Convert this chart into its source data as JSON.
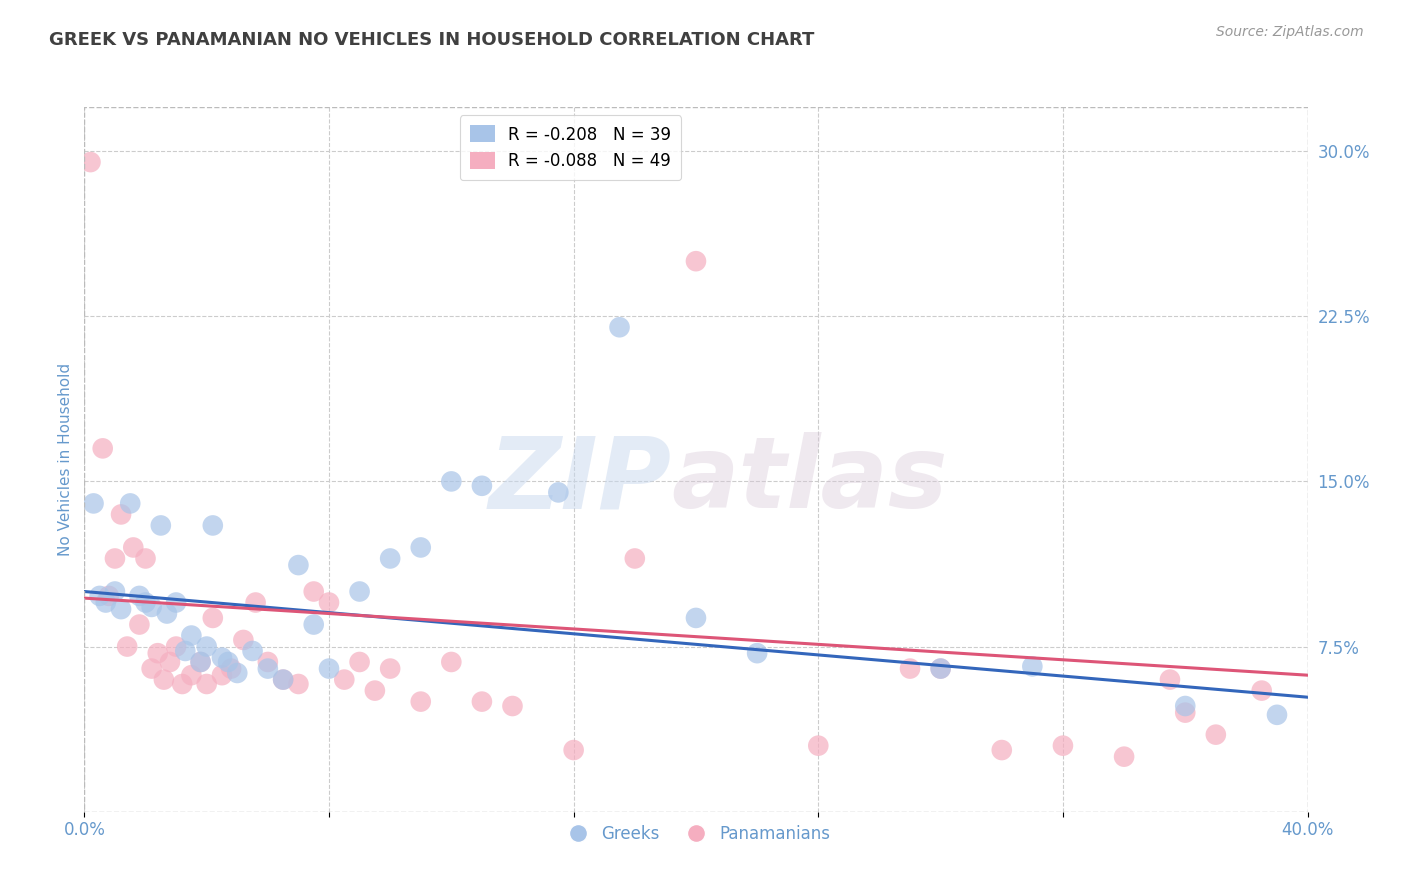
{
  "title": "GREEK VS PANAMANIAN NO VEHICLES IN HOUSEHOLD CORRELATION CHART",
  "source": "Source: ZipAtlas.com",
  "ylabel": "No Vehicles in Household",
  "xlim": [
    0.0,
    0.4
  ],
  "ylim": [
    0.0,
    0.32
  ],
  "xtick_positions": [
    0.0,
    0.08,
    0.16,
    0.24,
    0.32,
    0.4
  ],
  "xticklabels": [
    "0.0%",
    "",
    "",
    "",
    "",
    "40.0%"
  ],
  "ytick_right_labels": [
    "30.0%",
    "22.5%",
    "15.0%",
    "7.5%"
  ],
  "ytick_right_values": [
    0.3,
    0.225,
    0.15,
    0.075
  ],
  "legend_blue_r": "R = -0.208",
  "legend_blue_n": "N = 39",
  "legend_pink_r": "R = -0.088",
  "legend_pink_n": "N = 49",
  "blue_color": "#a8c4e8",
  "pink_color": "#f5aec0",
  "blue_line_color": "#3366bb",
  "pink_line_color": "#dd5577",
  "watermark_zip": "ZIP",
  "watermark_atlas": "atlas",
  "background_color": "#ffffff",
  "grid_color": "#cccccc",
  "title_color": "#404040",
  "source_color": "#999999",
  "axis_label_color": "#6699cc",
  "greek_scatter_x": [
    0.003,
    0.005,
    0.007,
    0.01,
    0.012,
    0.015,
    0.018,
    0.02,
    0.022,
    0.025,
    0.027,
    0.03,
    0.033,
    0.035,
    0.038,
    0.04,
    0.042,
    0.045,
    0.047,
    0.05,
    0.055,
    0.06,
    0.065,
    0.07,
    0.075,
    0.08,
    0.09,
    0.1,
    0.11,
    0.12,
    0.13,
    0.155,
    0.175,
    0.2,
    0.22,
    0.28,
    0.31,
    0.36,
    0.39
  ],
  "greek_scatter_y": [
    0.14,
    0.098,
    0.095,
    0.1,
    0.092,
    0.14,
    0.098,
    0.095,
    0.093,
    0.13,
    0.09,
    0.095,
    0.073,
    0.08,
    0.068,
    0.075,
    0.13,
    0.07,
    0.068,
    0.063,
    0.073,
    0.065,
    0.06,
    0.112,
    0.085,
    0.065,
    0.1,
    0.115,
    0.12,
    0.15,
    0.148,
    0.145,
    0.22,
    0.088,
    0.072,
    0.065,
    0.066,
    0.048,
    0.044
  ],
  "panama_scatter_x": [
    0.002,
    0.006,
    0.008,
    0.01,
    0.012,
    0.014,
    0.016,
    0.018,
    0.02,
    0.022,
    0.024,
    0.026,
    0.028,
    0.03,
    0.032,
    0.035,
    0.038,
    0.04,
    0.042,
    0.045,
    0.048,
    0.052,
    0.056,
    0.06,
    0.065,
    0.07,
    0.075,
    0.08,
    0.085,
    0.09,
    0.095,
    0.1,
    0.11,
    0.12,
    0.13,
    0.14,
    0.16,
    0.18,
    0.2,
    0.24,
    0.27,
    0.28,
    0.3,
    0.32,
    0.34,
    0.355,
    0.36,
    0.37,
    0.385
  ],
  "panama_scatter_y": [
    0.295,
    0.165,
    0.098,
    0.115,
    0.135,
    0.075,
    0.12,
    0.085,
    0.115,
    0.065,
    0.072,
    0.06,
    0.068,
    0.075,
    0.058,
    0.062,
    0.068,
    0.058,
    0.088,
    0.062,
    0.065,
    0.078,
    0.095,
    0.068,
    0.06,
    0.058,
    0.1,
    0.095,
    0.06,
    0.068,
    0.055,
    0.065,
    0.05,
    0.068,
    0.05,
    0.048,
    0.028,
    0.115,
    0.25,
    0.03,
    0.065,
    0.065,
    0.028,
    0.03,
    0.025,
    0.06,
    0.045,
    0.035,
    0.055
  ],
  "blue_trendline_start_y": 0.1,
  "blue_trendline_end_y": 0.052,
  "pink_trendline_start_y": 0.097,
  "pink_trendline_end_y": 0.062
}
